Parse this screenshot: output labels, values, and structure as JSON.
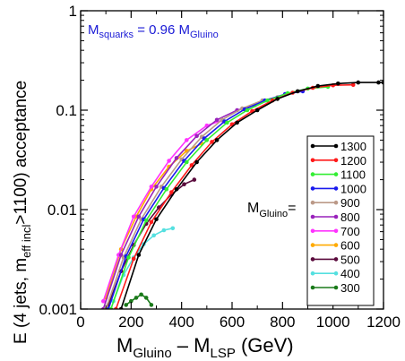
{
  "chart_data": {
    "type": "line",
    "title": "",
    "xlabel": {
      "main": "M",
      "sub1": "Gluino",
      "mid": " – M",
      "sub2": "LSP",
      "tail": "  (GeV)"
    },
    "ylabel": {
      "pre": "E (4 jets, m",
      "sub": "eff incl",
      "post": ">1100) acceptance"
    },
    "xlim": [
      0,
      1200
    ],
    "ylim": [
      0.001,
      1
    ],
    "yscale": "log",
    "xticks": [
      "0",
      "200",
      "400",
      "600",
      "800",
      "1000",
      "1200"
    ],
    "yticks": [
      "0.001",
      "0.01",
      "0.1",
      "1"
    ],
    "annotation": {
      "pre": "M",
      "sub1": "squarks",
      "mid": " = 0.96 M",
      "sub2": "Gluino"
    },
    "legend_title": {
      "pre": "M",
      "sub": "Gluino",
      "post": "="
    },
    "legend_position": "right",
    "series": [
      {
        "name": "1300",
        "color": "#000000",
        "x": [
          160,
          230,
          300,
          380,
          460,
          540,
          620,
          700,
          780,
          860,
          940,
          1020,
          1100,
          1180,
          1200
        ],
        "y": [
          0.001,
          0.0035,
          0.008,
          0.016,
          0.03,
          0.05,
          0.075,
          0.1,
          0.13,
          0.155,
          0.175,
          0.185,
          0.19,
          0.19,
          0.19
        ]
      },
      {
        "name": "1200",
        "color": "#ff1a1a",
        "x": [
          140,
          210,
          280,
          360,
          440,
          520,
          600,
          680,
          760,
          840,
          920,
          1000,
          1080
        ],
        "y": [
          0.001,
          0.0032,
          0.0075,
          0.015,
          0.028,
          0.048,
          0.072,
          0.098,
          0.125,
          0.15,
          0.168,
          0.178,
          0.18
        ]
      },
      {
        "name": "1100",
        "color": "#33ee33",
        "x": [
          120,
          190,
          260,
          340,
          420,
          500,
          580,
          660,
          740,
          820,
          900,
          980
        ],
        "y": [
          0.001,
          0.0033,
          0.0078,
          0.016,
          0.03,
          0.05,
          0.075,
          0.1,
          0.125,
          0.148,
          0.165,
          0.172
        ]
      },
      {
        "name": "1000",
        "color": "#1a1aee",
        "x": [
          110,
          180,
          250,
          330,
          410,
          490,
          570,
          650,
          730,
          810,
          880
        ],
        "y": [
          0.001,
          0.0034,
          0.008,
          0.0165,
          0.031,
          0.052,
          0.077,
          0.102,
          0.125,
          0.145,
          0.155
        ]
      },
      {
        "name": "900",
        "color": "#bb9988",
        "x": [
          100,
          170,
          240,
          320,
          400,
          480,
          560,
          640,
          720,
          780
        ],
        "y": [
          0.001,
          0.0033,
          0.008,
          0.017,
          0.032,
          0.054,
          0.08,
          0.104,
          0.125,
          0.135
        ]
      },
      {
        "name": "800",
        "color": "#9922bb",
        "x": [
          90,
          160,
          230,
          300,
          380,
          460,
          540,
          620,
          690
        ],
        "y": [
          0.001,
          0.0035,
          0.0085,
          0.017,
          0.033,
          0.055,
          0.08,
          0.1,
          0.112
        ]
      },
      {
        "name": "700",
        "color": "#ff33ff",
        "x": [
          90,
          150,
          210,
          280,
          350,
          420,
          500,
          560
        ],
        "y": [
          0.0012,
          0.0035,
          0.0085,
          0.017,
          0.031,
          0.05,
          0.07,
          0.079
        ]
      },
      {
        "name": "600",
        "color": "#ffaa00",
        "x": [
          100,
          160,
          220,
          280,
          350,
          420,
          480
        ],
        "y": [
          0.0013,
          0.004,
          0.0085,
          0.016,
          0.027,
          0.039,
          0.046
        ]
      },
      {
        "name": "500",
        "color": "#5a0a3c",
        "x": [
          110,
          160,
          210,
          260,
          310,
          360,
          410,
          450
        ],
        "y": [
          0.0011,
          0.0024,
          0.0044,
          0.0072,
          0.0105,
          0.0142,
          0.018,
          0.02
        ]
      },
      {
        "name": "400",
        "color": "#55e0e0",
        "x": [
          130,
          170,
          210,
          250,
          290,
          330,
          365
        ],
        "y": [
          0.0012,
          0.0022,
          0.0033,
          0.0045,
          0.0055,
          0.0062,
          0.0065
        ]
      },
      {
        "name": "300",
        "color": "#1a7a1a",
        "x": [
          180,
          200,
          220,
          240,
          260,
          280
        ],
        "y": [
          0.0011,
          0.0012,
          0.0013,
          0.0014,
          0.0013,
          0.0011
        ]
      }
    ]
  }
}
